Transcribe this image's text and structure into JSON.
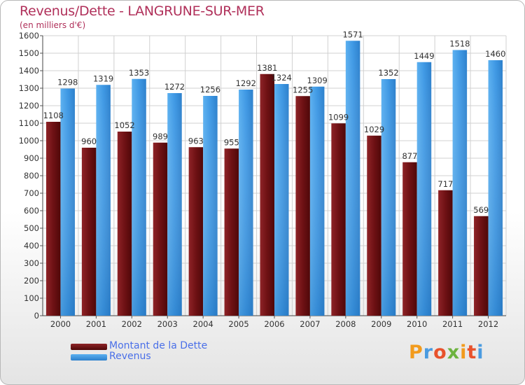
{
  "title": "Revenus/Dette - LANGRUNE-SUR-MER",
  "subtitle": "(en milliers d'€)",
  "brand": "Proxiti",
  "legend": [
    {
      "label": "Montant de la Dette",
      "color": "#7a1518"
    },
    {
      "label": "Revenus",
      "color": "#3e9ae6"
    }
  ],
  "chart_data": {
    "type": "bar",
    "categories": [
      "2000",
      "2001",
      "2002",
      "2003",
      "2004",
      "2005",
      "2006",
      "2007",
      "2008",
      "2009",
      "2010",
      "2011",
      "2012"
    ],
    "series": [
      {
        "name": "Montant de la Dette",
        "values": [
          1108,
          960,
          1052,
          989,
          963,
          955,
          1381,
          1255,
          1099,
          1029,
          877,
          717,
          569
        ],
        "color": "#7a1518"
      },
      {
        "name": "Revenus",
        "values": [
          1298,
          1319,
          1353,
          1272,
          1256,
          1292,
          1324,
          1309,
          1571,
          1352,
          1449,
          1518,
          1460
        ],
        "color": "#3e9ae6"
      }
    ],
    "ylim": [
      0,
      1600
    ],
    "yticks": [
      0,
      100,
      200,
      300,
      400,
      500,
      600,
      700,
      800,
      900,
      1000,
      1100,
      1200,
      1300,
      1400,
      1500,
      1600
    ],
    "grid": true
  }
}
